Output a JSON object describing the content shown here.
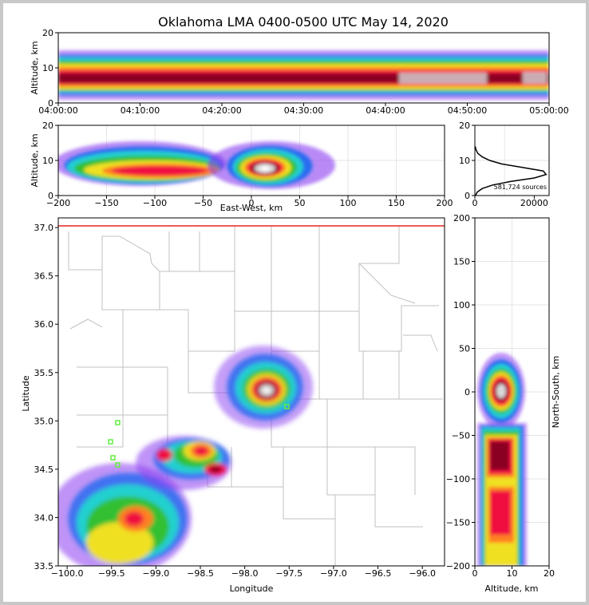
{
  "figure": {
    "title": "Oklahoma LMA 0400-0500 UTC May 14, 2020"
  },
  "colors": {
    "density_colormap": [
      "#8a3cf0",
      "#2a6cf0",
      "#22d0d0",
      "#30c030",
      "#f0e020",
      "#ff8020",
      "#f01040",
      "#8a0020",
      "#d8d8d8",
      "#ffffff"
    ],
    "state_boundary": "#e8241e",
    "county_boundary": "#c0c0c0",
    "station_marker": "#60f040"
  },
  "panels": {
    "time_height": {
      "ylabel": "Altitude, km",
      "xlim": [
        "04:00:00",
        "05:00:00"
      ],
      "ylim": [
        0,
        20
      ],
      "xticks": [
        "04:00:00",
        "04:10:00",
        "04:20:00",
        "04:30:00",
        "04:40:00",
        "04:50:00",
        "05:00:00"
      ],
      "yticks": [
        "0",
        "10",
        "20"
      ]
    },
    "east_west": {
      "xlabel": "East-West, km",
      "ylabel": "Altitude, km",
      "xlim": [
        -200,
        200
      ],
      "ylim": [
        0,
        20
      ],
      "xticks": [
        "−200",
        "−150",
        "−100",
        "−50",
        "0",
        "50",
        "100",
        "150",
        "200"
      ],
      "yticks": [
        "0",
        "10",
        "20"
      ]
    },
    "histogram": {
      "xlim": [
        0,
        25000
      ],
      "ylim": [
        0,
        20
      ],
      "xticks": [
        "0",
        "20000"
      ],
      "yticks": [
        "0",
        "10",
        "20"
      ],
      "source_count": "581,724 sources"
    },
    "plan_view": {
      "xlabel": "Longitude",
      "ylabel": "Latitude",
      "xlim": [
        -100.1,
        -95.75
      ],
      "ylim": [
        33.5,
        37.1
      ],
      "xticks": [
        "−100.0",
        "−99.5",
        "−99.0",
        "−98.5",
        "−98.0",
        "−97.5",
        "−97.0",
        "−96.5",
        "−96.0"
      ],
      "yticks": [
        "33.5",
        "34.0",
        "34.5",
        "35.0",
        "35.5",
        "36.0",
        "36.5",
        "37.0"
      ]
    },
    "north_south": {
      "xlabel": "Altitude, km",
      "ylabel": "North-South, km",
      "xlim": [
        0,
        20
      ],
      "ylim": [
        -200,
        200
      ],
      "xticks": [
        "0",
        "10",
        "20"
      ],
      "yticks": [
        "−200",
        "−150",
        "−100",
        "−50",
        "0",
        "50",
        "100",
        "150",
        "200"
      ]
    }
  },
  "chart_data": [
    {
      "type": "heatmap",
      "panel": "time_height",
      "description_series": "source density vs time and altitude",
      "x": [
        "04:00:00",
        "04:10:00",
        "04:20:00",
        "04:30:00",
        "04:40:00",
        "04:50:00",
        "05:00:00"
      ],
      "ylim": [
        0,
        20
      ],
      "core_altitude_km": [
        5,
        9
      ]
    },
    {
      "type": "heatmap",
      "panel": "east_west",
      "xlim": [
        -200,
        200
      ],
      "ylim": [
        0,
        20
      ]
    },
    {
      "type": "line",
      "panel": "histogram",
      "x": [
        200,
        800,
        2500,
        6000,
        12000,
        20000,
        24000,
        23000,
        16000,
        9000,
        5000,
        2500,
        1000,
        400,
        100
      ],
      "y": [
        0,
        1,
        2,
        3,
        4,
        5,
        6,
        7,
        8,
        9,
        10,
        11,
        12,
        13,
        14
      ],
      "xlim": [
        0,
        25000
      ],
      "ylim": [
        0,
        20
      ]
    },
    {
      "type": "heatmap",
      "panel": "plan_view",
      "xlim": [
        -100.1,
        -95.75
      ],
      "ylim": [
        33.5,
        37.1
      ]
    },
    {
      "type": "heatmap",
      "panel": "north_south",
      "xlim": [
        0,
        20
      ],
      "ylim": [
        -200,
        200
      ]
    }
  ]
}
